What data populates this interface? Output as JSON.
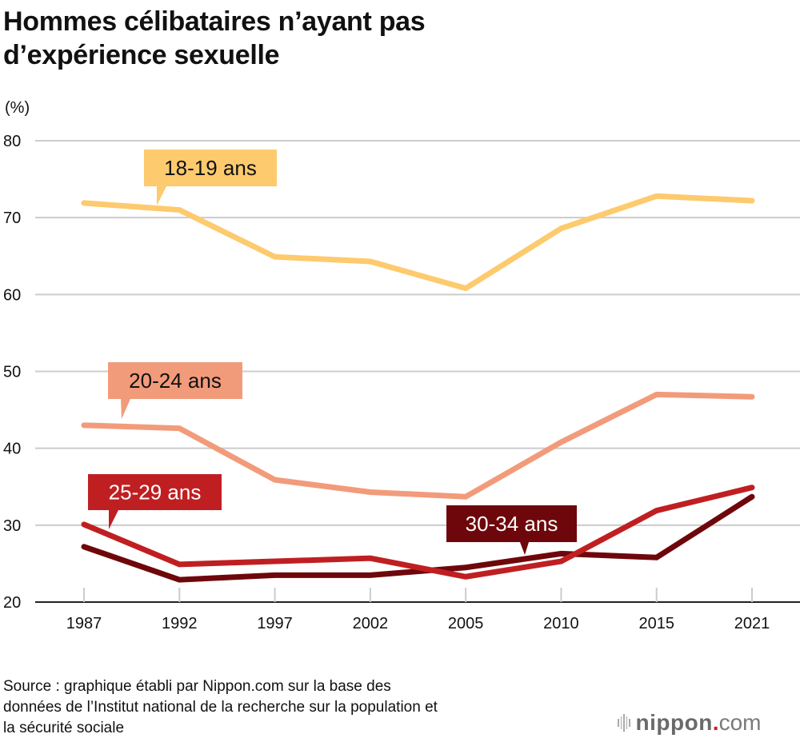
{
  "chart_data": {
    "type": "line",
    "title": "Hommes célibataires n’ayant pas d’expérience sexuelle",
    "ylabel": "(%)",
    "xlabel": "",
    "ylim": [
      20,
      80
    ],
    "yticks": [
      20,
      30,
      40,
      50,
      60,
      70,
      80
    ],
    "grid": true,
    "categories": [
      "1987",
      "1992",
      "1997",
      "2002",
      "2005",
      "2010",
      "2015",
      "2021"
    ],
    "series": [
      {
        "name": "18-19 ans",
        "color": "#fdca6e",
        "label_text_color": "#111111",
        "values": [
          71.9,
          71.0,
          64.9,
          64.3,
          60.8,
          68.6,
          72.8,
          72.2
        ]
      },
      {
        "name": "20-24 ans",
        "color": "#f29b7b",
        "label_text_color": "#111111",
        "values": [
          43.0,
          42.6,
          35.9,
          34.3,
          33.7,
          40.8,
          47.0,
          46.7
        ]
      },
      {
        "name": "25-29 ans",
        "color": "#c01f22",
        "label_text_color": "#ffffff",
        "values": [
          30.1,
          24.9,
          25.3,
          25.7,
          23.3,
          25.3,
          31.9,
          34.9
        ]
      },
      {
        "name": "30-34 ans",
        "color": "#6e070b",
        "label_text_color": "#ffffff",
        "values": [
          27.2,
          22.9,
          23.5,
          23.5,
          24.5,
          26.3,
          25.8,
          33.7
        ]
      }
    ]
  },
  "source": {
    "line1": "Source : graphique établi par Nippon.com sur la base des",
    "line2": "données de l’Institut national de la recherche sur la population et",
    "line3": "la sécurité sociale"
  },
  "logo": {
    "word": "nippon",
    "dot": ".",
    "com": "com"
  },
  "colors": {
    "grid": "#cccccc",
    "axis": "#222222",
    "logo_accent": "#e0161b"
  }
}
